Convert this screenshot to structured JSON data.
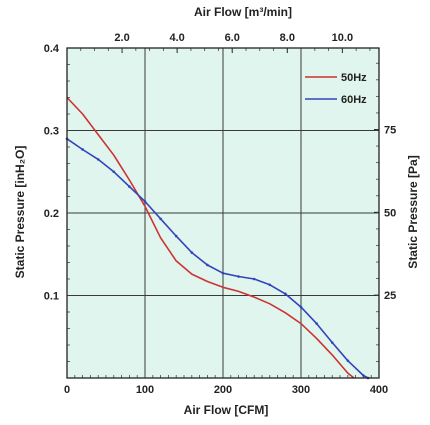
{
  "chart_data": {
    "type": "line",
    "top_axis_title": "Air Flow  [m³/min]",
    "xlabel": "Air Flow  [CFM]",
    "ylabel": "Static Pressure [inH₂O]",
    "ylabel_right": "Static Pressure [Pa]",
    "xlim": [
      0,
      400
    ],
    "ylim": [
      0,
      0.4
    ],
    "x_ticks": [
      {
        "value": 0,
        "label": "0"
      },
      {
        "value": 100,
        "label": "100"
      },
      {
        "value": 200,
        "label": "200"
      },
      {
        "value": 300,
        "label": "300"
      },
      {
        "value": 400,
        "label": "400"
      }
    ],
    "y_ticks": [
      {
        "value": 0.1,
        "label": "0.1"
      },
      {
        "value": 0.2,
        "label": "0.2"
      },
      {
        "value": 0.3,
        "label": "0.3"
      },
      {
        "value": 0.4,
        "label": "0.4"
      }
    ],
    "top_ticks": [
      {
        "value": 2.0,
        "label": "2.0"
      },
      {
        "value": 4.0,
        "label": "4.0"
      },
      {
        "value": 6.0,
        "label": "6.0"
      },
      {
        "value": 8.0,
        "label": "8.0"
      },
      {
        "value": 10.0,
        "label": "10.0"
      }
    ],
    "top_range_m3_per_min": [
      0,
      11.33
    ],
    "right_ticks": [
      {
        "value": 25,
        "label": "25"
      },
      {
        "value": 50,
        "label": "50"
      },
      {
        "value": 75,
        "label": "75"
      }
    ],
    "right_range_pa": [
      0,
      99.6
    ],
    "grid": true,
    "background_color": "#dff5ee",
    "legend_position": "top-right",
    "series": [
      {
        "name": "50Hz",
        "color": "#cc3333",
        "points": [
          [
            0,
            0.34
          ],
          [
            20,
            0.32
          ],
          [
            40,
            0.295
          ],
          [
            60,
            0.27
          ],
          [
            80,
            0.24
          ],
          [
            100,
            0.208
          ],
          [
            120,
            0.17
          ],
          [
            140,
            0.142
          ],
          [
            160,
            0.126
          ],
          [
            180,
            0.117
          ],
          [
            200,
            0.11
          ],
          [
            220,
            0.105
          ],
          [
            240,
            0.098
          ],
          [
            260,
            0.09
          ],
          [
            280,
            0.079
          ],
          [
            300,
            0.066
          ],
          [
            320,
            0.048
          ],
          [
            340,
            0.028
          ],
          [
            360,
            0.006
          ],
          [
            368,
            0.0
          ]
        ]
      },
      {
        "name": "60Hz",
        "color": "#3344bb",
        "points": [
          [
            0,
            0.29
          ],
          [
            20,
            0.277
          ],
          [
            40,
            0.265
          ],
          [
            60,
            0.25
          ],
          [
            80,
            0.232
          ],
          [
            100,
            0.214
          ],
          [
            120,
            0.193
          ],
          [
            140,
            0.172
          ],
          [
            160,
            0.152
          ],
          [
            180,
            0.137
          ],
          [
            200,
            0.127
          ],
          [
            220,
            0.123
          ],
          [
            240,
            0.12
          ],
          [
            260,
            0.113
          ],
          [
            280,
            0.102
          ],
          [
            300,
            0.086
          ],
          [
            320,
            0.066
          ],
          [
            340,
            0.043
          ],
          [
            360,
            0.021
          ],
          [
            380,
            0.003
          ],
          [
            386,
            0.0
          ]
        ]
      }
    ]
  }
}
